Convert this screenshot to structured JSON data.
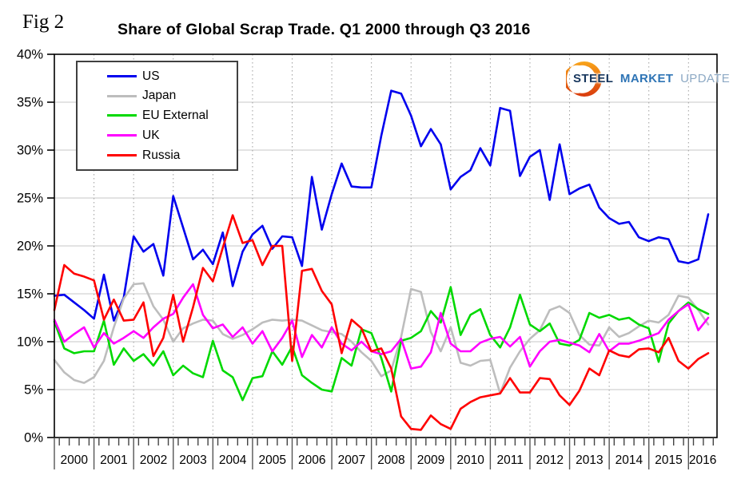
{
  "figure": {
    "fig_label": "Fig 2",
    "title": "Share of Global Scrap Trade. Q1 2000 through Q3 2016"
  },
  "logo": {
    "steel": "STEEL",
    "market": "MARKET",
    "update": "UPDATE",
    "swoosh_color_top": "#F9A51A",
    "swoosh_color_bottom": "#D93A0D"
  },
  "chart_data": {
    "type": "line",
    "title": "Share of Global Scrap Trade. Q1 2000 through Q3 2016",
    "x_start": "Q1 2000",
    "x_end": "Q3 2016",
    "x_unit": "quarter",
    "quarters_per_year": 4,
    "years": [
      "2000",
      "2001",
      "2002",
      "2003",
      "2004",
      "2005",
      "2006",
      "2007",
      "2008",
      "2009",
      "2010",
      "2011",
      "2012",
      "2013",
      "2014",
      "2015",
      "2016"
    ],
    "y_ticks": [
      0,
      5,
      10,
      15,
      20,
      25,
      30,
      35,
      40
    ],
    "y_tick_labels": [
      "0%",
      "5%",
      "10%",
      "15%",
      "20%",
      "25%",
      "30%",
      "35%",
      "40%"
    ],
    "ylim": [
      0,
      40
    ],
    "grid": true,
    "legend_position": "top-left",
    "series": [
      {
        "name": "US",
        "color": "#0000EE",
        "values": [
          14.8,
          14.9,
          14.1,
          13.3,
          12.4,
          17.0,
          12.2,
          14.6,
          21.0,
          19.4,
          20.2,
          16.9,
          25.2,
          21.9,
          18.6,
          19.6,
          18.1,
          21.4,
          15.8,
          19.4,
          21.2,
          22.1,
          19.7,
          21.0,
          20.9,
          17.9,
          27.2,
          21.7,
          25.4,
          28.6,
          26.2,
          26.1,
          26.1,
          31.5,
          36.2,
          35.9,
          33.6,
          30.4,
          32.2,
          30.6,
          25.9,
          27.2,
          27.9,
          30.2,
          28.4,
          34.4,
          34.1,
          27.3,
          29.3,
          30.0,
          24.8,
          30.6,
          25.4,
          26.0,
          26.4,
          24.0,
          22.9,
          22.3,
          22.5,
          20.9,
          20.5,
          20.9,
          20.7,
          18.4,
          18.2,
          18.6,
          23.3
        ]
      },
      {
        "name": "Japan",
        "color": "#BDBDBD",
        "values": [
          8.1,
          6.8,
          6.0,
          5.7,
          6.3,
          8.0,
          11.5,
          14.5,
          16.0,
          16.1,
          13.7,
          12.3,
          10.0,
          11.4,
          11.9,
          12.3,
          12.2,
          10.8,
          10.3,
          10.7,
          11.3,
          12.0,
          12.3,
          12.2,
          12.3,
          12.2,
          11.7,
          11.2,
          11.0,
          10.8,
          10.0,
          8.9,
          8.0,
          6.4,
          7.0,
          10.5,
          15.5,
          15.2,
          11.0,
          9.0,
          11.5,
          7.8,
          7.5,
          8.0,
          8.1,
          4.6,
          7.3,
          9.0,
          10.3,
          11.2,
          13.3,
          13.7,
          13.0,
          10.7,
          9.7,
          9.6,
          11.5,
          10.5,
          10.9,
          11.6,
          12.2,
          12.0,
          12.8,
          14.8,
          14.6,
          13.3,
          11.8
        ]
      },
      {
        "name": "EU External",
        "color": "#00D900",
        "values": [
          12.1,
          9.3,
          8.8,
          9.0,
          9.0,
          12.2,
          7.6,
          9.3,
          8.0,
          8.7,
          7.5,
          9.0,
          6.5,
          7.5,
          6.7,
          6.3,
          10.1,
          7.0,
          6.3,
          3.9,
          6.2,
          6.4,
          9.0,
          7.6,
          9.5,
          6.5,
          5.7,
          5.0,
          4.8,
          8.3,
          7.5,
          11.3,
          10.9,
          8.3,
          4.8,
          10.1,
          10.4,
          11.1,
          13.2,
          12.0,
          15.7,
          10.7,
          12.8,
          13.4,
          10.7,
          9.4,
          11.5,
          14.9,
          11.8,
          11.1,
          11.9,
          9.8,
          9.6,
          10.2,
          13.0,
          12.5,
          12.8,
          12.3,
          12.5,
          11.8,
          11.4,
          7.9,
          11.9,
          13.2,
          14.1,
          13.4,
          12.9
        ]
      },
      {
        "name": "UK",
        "color": "#FF00FF",
        "values": [
          12.3,
          10.0,
          10.8,
          11.5,
          9.4,
          10.9,
          9.8,
          10.4,
          11.1,
          10.4,
          11.5,
          12.4,
          12.9,
          14.6,
          16.0,
          12.8,
          11.4,
          11.8,
          10.5,
          11.5,
          9.8,
          11.1,
          9.0,
          10.4,
          12.2,
          8.4,
          10.7,
          9.4,
          11.5,
          9.8,
          9.1,
          10.0,
          9.0,
          8.7,
          9.0,
          10.3,
          7.2,
          7.4,
          8.9,
          13.0,
          9.8,
          9.0,
          9.0,
          9.9,
          10.3,
          10.5,
          9.5,
          10.5,
          7.4,
          9.0,
          10.0,
          10.2,
          9.9,
          9.6,
          8.9,
          10.8,
          9.0,
          9.8,
          9.8,
          10.1,
          10.5,
          10.9,
          12.3,
          13.2,
          13.9,
          11.2,
          12.5
        ]
      },
      {
        "name": "Russia",
        "color": "#FF0000",
        "values": [
          13.3,
          18.0,
          17.1,
          16.8,
          16.4,
          12.3,
          14.4,
          12.2,
          12.3,
          14.1,
          8.5,
          10.4,
          14.9,
          10.0,
          13.6,
          17.7,
          16.3,
          19.8,
          23.2,
          20.3,
          20.6,
          18.0,
          20.0,
          20.0,
          8.0,
          17.4,
          17.6,
          15.3,
          13.9,
          8.8,
          12.3,
          11.4,
          9.0,
          9.3,
          7.2,
          2.2,
          0.9,
          0.8,
          2.3,
          1.4,
          0.9,
          3.0,
          3.7,
          4.2,
          4.4,
          4.6,
          6.2,
          4.7,
          4.7,
          6.2,
          6.1,
          4.4,
          3.4,
          4.9,
          7.2,
          6.5,
          9.1,
          8.6,
          8.4,
          9.2,
          9.3,
          8.9,
          10.4,
          8.0,
          7.2,
          8.2,
          8.8
        ]
      }
    ]
  }
}
